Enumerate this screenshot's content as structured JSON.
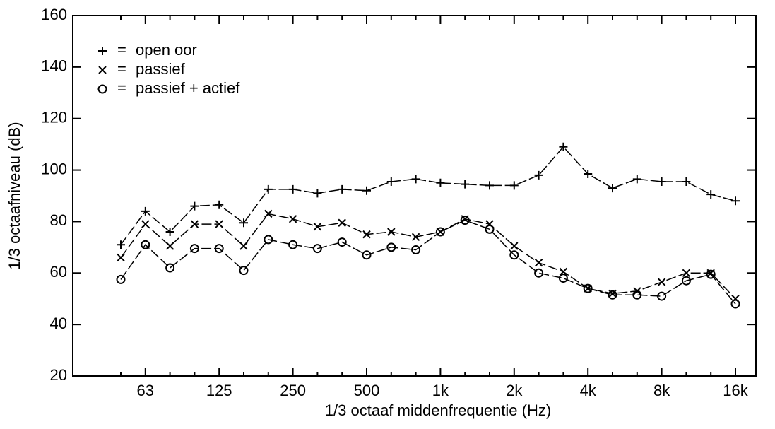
{
  "chart_data": {
    "type": "line",
    "x_label": "1/3 octaaf middenfrequentie (Hz)",
    "y_label": "1/3 octaafniveau (dB)",
    "categories": [
      null,
      "63",
      null,
      null,
      "125",
      null,
      null,
      "250",
      null,
      null,
      "500",
      null,
      null,
      "1k",
      null,
      null,
      "2k",
      null,
      null,
      "4k",
      null,
      null,
      "8k",
      null,
      null,
      "16k"
    ],
    "ylim": [
      20,
      160
    ],
    "yticks": [
      20,
      40,
      60,
      80,
      100,
      120,
      140,
      160
    ],
    "legend_separator": "=",
    "legend": "upper left",
    "series": [
      {
        "name": "open oor",
        "color": "#000000",
        "marker": "+",
        "values": [
          71,
          84,
          76,
          86,
          86.5,
          79.5,
          92.5,
          92.5,
          91,
          92.5,
          92,
          95.5,
          96.5,
          95,
          94.5,
          94,
          94,
          98,
          109,
          98.5,
          93,
          96.5,
          95.5,
          95.5,
          90.5,
          88
        ]
      },
      {
        "name": "passief",
        "color": "#000000",
        "marker": "x",
        "values": [
          66,
          79,
          70.5,
          79,
          79,
          70.5,
          83,
          81,
          78,
          79.5,
          75,
          76,
          74,
          76,
          81,
          79,
          70.5,
          64,
          60.5,
          54,
          52,
          53,
          56.5,
          60,
          60,
          50
        ]
      },
      {
        "name": "passief + actief",
        "color": "#000000",
        "marker": "o",
        "values": [
          57.5,
          71,
          62,
          69.5,
          69.5,
          61,
          73,
          71,
          69.5,
          72,
          67,
          70,
          69,
          76,
          80.5,
          77,
          67,
          60,
          58,
          54,
          51.5,
          51.5,
          51,
          57,
          59.5,
          48
        ]
      }
    ]
  }
}
